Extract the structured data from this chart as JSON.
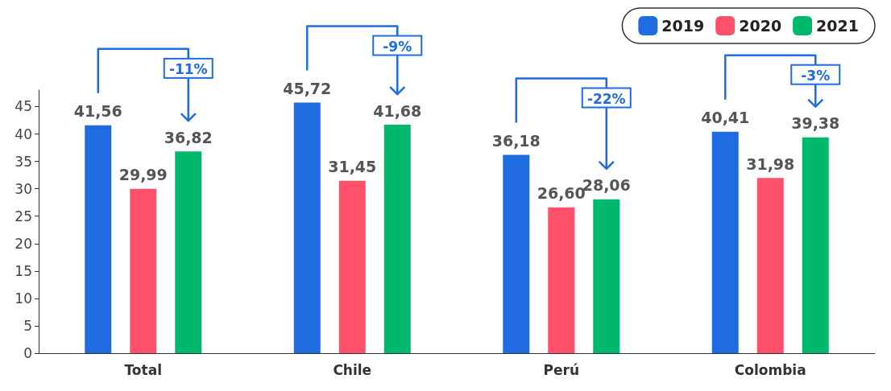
{
  "chart_data": {
    "type": "bar",
    "categories": [
      "Total",
      "Chile",
      "Perú",
      "Colombia"
    ],
    "series": [
      {
        "name": "2019",
        "color": "#1f6be0",
        "values": [
          41.56,
          45.72,
          36.18,
          40.41
        ],
        "value_labels": [
          "41,56",
          "45,72",
          "36,18",
          "40,41"
        ]
      },
      {
        "name": "2020",
        "color": "#ff5169",
        "values": [
          29.99,
          31.45,
          26.6,
          31.98
        ],
        "value_labels": [
          "29,99",
          "31,45",
          "26,60",
          "31,98"
        ]
      },
      {
        "name": "2021",
        "color": "#00b86b",
        "values": [
          36.82,
          41.68,
          28.06,
          39.38
        ],
        "value_labels": [
          "36,82",
          "41,68",
          "28,06",
          "39,38"
        ]
      }
    ],
    "ylim": [
      0,
      48
    ],
    "yticks": [
      0,
      5,
      10,
      15,
      20,
      25,
      30,
      35,
      40,
      45
    ],
    "grid": false,
    "legend": "top right",
    "annotations": [
      "-11%",
      "-9%",
      "-22%",
      "-3%"
    ]
  }
}
